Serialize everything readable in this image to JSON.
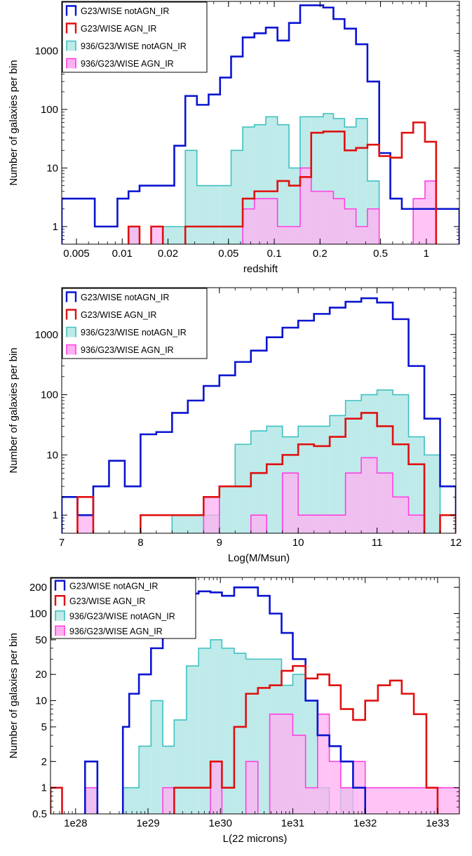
{
  "chart_data": [
    {
      "type": "histogram",
      "xscale": "log",
      "yscale": "log",
      "xlim": [
        0.004,
        1.65
      ],
      "ylim": [
        0.5,
        7000
      ],
      "xlabel": "redshift",
      "ylabel": "Number of galaxies per bin",
      "xticks": [
        {
          "v": 0.005,
          "label": "0.005"
        },
        {
          "v": 0.01,
          "label": "0.01"
        },
        {
          "v": 0.02,
          "label": "0.02"
        },
        {
          "v": 0.05,
          "label": "0.05"
        },
        {
          "v": 0.1,
          "label": "0.1"
        },
        {
          "v": 0.2,
          "label": "0.2"
        },
        {
          "v": 0.5,
          "label": "0.5"
        },
        {
          "v": 1,
          "label": "1"
        }
      ],
      "yticks": [
        {
          "v": 1,
          "label": "1"
        },
        {
          "v": 10,
          "label": "10"
        },
        {
          "v": 100,
          "label": "100"
        },
        {
          "v": 1000,
          "label": "1000"
        }
      ],
      "bin_edges": [
        0.004,
        0.0047,
        0.0056,
        0.0066,
        0.0078,
        0.0093,
        0.011,
        0.013,
        0.0155,
        0.0185,
        0.022,
        0.026,
        0.031,
        0.037,
        0.044,
        0.052,
        0.062,
        0.074,
        0.088,
        0.105,
        0.125,
        0.148,
        0.175,
        0.21,
        0.245,
        0.29,
        0.345,
        0.41,
        0.49,
        0.58,
        0.69,
        0.82,
        0.98,
        1.16,
        1.38,
        1.65
      ],
      "series": [
        {
          "name": "G23/WISE notAGN_IR",
          "style": "step",
          "color": "#0a14d0",
          "values": [
            3,
            3,
            3,
            1,
            1,
            3,
            4,
            5,
            5,
            5,
            24,
            170,
            120,
            180,
            350,
            800,
            1700,
            2000,
            2500,
            1500,
            3000,
            6000,
            6000,
            5500,
            3500,
            2400,
            1300,
            300,
            18,
            3,
            2,
            2,
            2,
            2,
            2
          ]
        },
        {
          "name": "G23/WISE AGN_IR",
          "style": "step",
          "color": "#e01010",
          "values": [
            0,
            0,
            0,
            0,
            0,
            0,
            1,
            0,
            1,
            0,
            0,
            1,
            1,
            1,
            1,
            1,
            3,
            4,
            4,
            6,
            5,
            7,
            40,
            42,
            42,
            20,
            22,
            25,
            16,
            15,
            40,
            60,
            28,
            0,
            0
          ]
        },
        {
          "name": "936/G23/WISE notAGN_IR",
          "style": "filled",
          "color": "#40c0c0",
          "fill": "#bfeaea",
          "values": [
            0,
            0,
            0,
            0,
            0,
            0,
            1,
            0,
            0,
            1,
            1,
            20,
            5,
            5,
            5,
            20,
            50,
            55,
            75,
            55,
            10,
            75,
            75,
            85,
            70,
            50,
            70,
            6,
            0,
            0,
            0,
            0,
            0,
            0,
            0
          ]
        },
        {
          "name": "936/G23/WISE AGN_IR",
          "style": "filled",
          "color": "#ff40e0",
          "fill": "#ffb0f2",
          "values": [
            0,
            0,
            0,
            0,
            0,
            0,
            1,
            0,
            1,
            0,
            0,
            0,
            0,
            0,
            0,
            0,
            2,
            3,
            3,
            1,
            1,
            10,
            4,
            4,
            3,
            2,
            1,
            2,
            0,
            0,
            0,
            3,
            6,
            0,
            0
          ]
        }
      ]
    },
    {
      "type": "histogram",
      "xscale": "linear",
      "yscale": "log",
      "xlim": [
        7,
        12
      ],
      "ylim": [
        0.5,
        6000
      ],
      "xlabel": "Log(M/Msun)",
      "ylabel": "Number of galaxies per bin",
      "xticks": [
        {
          "v": 7,
          "label": "7"
        },
        {
          "v": 8,
          "label": "8"
        },
        {
          "v": 9,
          "label": "9"
        },
        {
          "v": 10,
          "label": "10"
        },
        {
          "v": 11,
          "label": "11"
        },
        {
          "v": 12,
          "label": "12"
        }
      ],
      "yticks": [
        {
          "v": 1,
          "label": "1"
        },
        {
          "v": 10,
          "label": "10"
        },
        {
          "v": 100,
          "label": "100"
        },
        {
          "v": 1000,
          "label": "1000"
        }
      ],
      "bin_edges": [
        7.0,
        7.2,
        7.4,
        7.6,
        7.8,
        8.0,
        8.2,
        8.4,
        8.6,
        8.8,
        9.0,
        9.2,
        9.4,
        9.6,
        9.8,
        10.0,
        10.2,
        10.4,
        10.6,
        10.8,
        11.0,
        11.2,
        11.4,
        11.6,
        11.8,
        12.0
      ],
      "series": [
        {
          "name": "G23/WISE notAGN_IR",
          "style": "step",
          "color": "#0a14d0",
          "values": [
            2,
            1,
            3,
            8,
            3,
            22,
            24,
            50,
            80,
            140,
            210,
            350,
            540,
            900,
            1300,
            1700,
            2200,
            2800,
            3500,
            4000,
            3400,
            1800,
            300,
            40,
            3
          ]
        },
        {
          "name": "G23/WISE AGN_IR",
          "style": "step",
          "color": "#e01010",
          "values": [
            0,
            2,
            0,
            0,
            0,
            1,
            1,
            1,
            1,
            2,
            3,
            3,
            5,
            7,
            10,
            15,
            14,
            20,
            40,
            50,
            30,
            15,
            7,
            0,
            1
          ]
        },
        {
          "name": "936/G23/WISE notAGN_IR",
          "style": "filled",
          "color": "#40c0c0",
          "fill": "#bfeaea",
          "values": [
            0,
            0,
            0,
            0,
            0,
            0,
            0,
            1,
            1,
            1,
            3,
            15,
            25,
            30,
            20,
            30,
            30,
            45,
            80,
            100,
            120,
            100,
            20,
            10,
            0
          ]
        },
        {
          "name": "936/G23/WISE AGN_IR",
          "style": "filled",
          "color": "#ff40e0",
          "fill": "#ffb0f2",
          "values": [
            0,
            1,
            0,
            0,
            0,
            0,
            0,
            0,
            0,
            2,
            0,
            0,
            1,
            0,
            5,
            1,
            1,
            1,
            5,
            9,
            5,
            2,
            1,
            0,
            0
          ]
        }
      ]
    },
    {
      "type": "histogram",
      "xscale": "log",
      "yscale": "log",
      "xlim": [
        4.5e+27,
        2e+33
      ],
      "ylim": [
        0.5,
        260
      ],
      "xlabel": "L(22 microns)",
      "ylabel": "Number of galaxies per bin",
      "xticks": [
        {
          "v": 1e+28,
          "label": "1e28"
        },
        {
          "v": 1e+29,
          "label": "1e29"
        },
        {
          "v": 1e+30,
          "label": "1e30"
        },
        {
          "v": 1e+31,
          "label": "1e31"
        },
        {
          "v": 1e+32,
          "label": "1e32"
        },
        {
          "v": 1e+33,
          "label": "1e33"
        }
      ],
      "yticks": [
        {
          "v": 0.5,
          "label": "0.5"
        },
        {
          "v": 1,
          "label": "1"
        },
        {
          "v": 2,
          "label": "2"
        },
        {
          "v": 5,
          "label": "5"
        },
        {
          "v": 10,
          "label": "10"
        },
        {
          "v": 20,
          "label": "20"
        },
        {
          "v": 50,
          "label": "50"
        },
        {
          "v": 100,
          "label": "100"
        },
        {
          "v": 200,
          "label": "200"
        }
      ],
      "bin_edges": [
        4.5e+27,
        6.5e+27,
        1.35e+28,
        2e+28,
        3e+28,
        4.5e+28,
        5.5e+28,
        7.5e+28,
        1.1e+29,
        1.6e+29,
        2.3e+29,
        3.4e+29,
        5e+29,
        7.3e+29,
        1.05e+30,
        1.55e+30,
        2.25e+30,
        3.3e+30,
        4.8e+30,
        7e+30,
        1e+31,
        1.5e+31,
        2.2e+31,
        3.2e+31,
        4.6e+31,
        6.8e+31,
        1e+32,
        1.5e+32,
        2.2e+32,
        3.2e+32,
        4.7e+32,
        7e+32,
        1e+33,
        2e+33
      ],
      "series": [
        {
          "name": "G23/WISE notAGN_IR",
          "style": "step",
          "color": "#0a14d0",
          "values": [
            0,
            0,
            2,
            0,
            0,
            5,
            12,
            20,
            40,
            90,
            100,
            170,
            180,
            175,
            160,
            200,
            200,
            160,
            100,
            60,
            30,
            10,
            4,
            3,
            2,
            1,
            0,
            0,
            0,
            0,
            0,
            0,
            0
          ]
        },
        {
          "name": "G23/WISE AGN_IR",
          "style": "step",
          "color": "#e01010",
          "values": [
            1,
            0,
            0,
            0,
            0,
            0,
            0,
            0,
            0,
            0,
            1,
            1,
            1,
            2,
            1,
            5,
            12,
            14,
            15,
            22,
            25,
            18,
            20,
            15,
            8,
            6,
            10,
            15,
            17,
            12,
            7,
            1,
            0
          ]
        },
        {
          "name": "936/G23/WISE notAGN_IR",
          "style": "filled",
          "color": "#40c0c0",
          "fill": "#bfeaea",
          "values": [
            0,
            0,
            1,
            0,
            0,
            1,
            1,
            3,
            10,
            3,
            6,
            25,
            40,
            50,
            40,
            35,
            30,
            30,
            30,
            15,
            20,
            10,
            1,
            0,
            1,
            0,
            0,
            0,
            0,
            0,
            0,
            0,
            0
          ]
        },
        {
          "name": "936/G23/WISE AGN_IR",
          "style": "filled",
          "color": "#ff40e0",
          "fill": "#ffb0f2",
          "values": [
            0,
            0,
            1,
            0,
            0,
            0,
            0,
            0,
            0,
            1,
            0,
            0,
            0,
            2,
            0,
            0,
            2,
            0,
            7,
            7,
            4,
            1,
            7,
            2,
            1,
            2,
            1,
            1,
            1,
            1,
            1,
            1,
            1
          ]
        }
      ]
    }
  ]
}
